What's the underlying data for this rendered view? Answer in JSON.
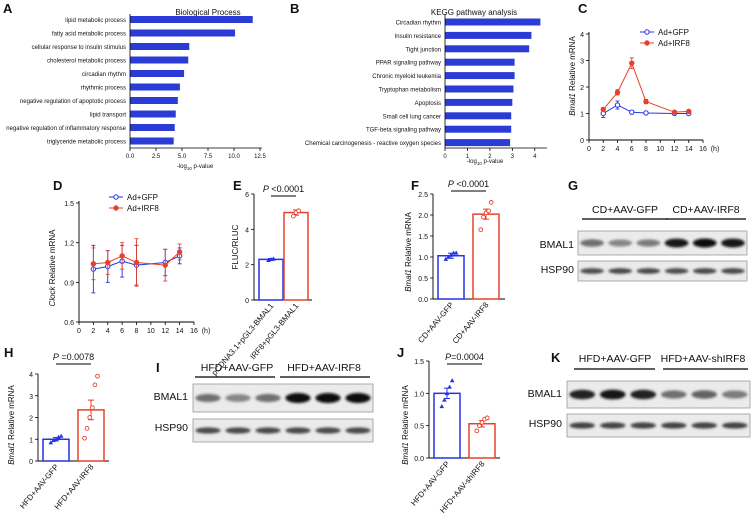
{
  "panels": {
    "A": {
      "label": "A",
      "title": "Biological Process",
      "xlabel_base": "-log",
      "xlabel_sub": "10",
      "xlabel_tail": " p-value",
      "ticks": [
        "0.0",
        "2.5",
        "5.0",
        "7.5",
        "10.0",
        "12.5"
      ],
      "xlim": [
        0,
        12.5
      ]
    },
    "B": {
      "label": "B",
      "title": "KEGG pathway analysis",
      "xlabel_base": "-log",
      "xlabel_sub": "10",
      "xlabel_tail": " p-value",
      "ticks": [
        "0",
        "1",
        "2",
        "3",
        "4"
      ],
      "xlim": [
        0,
        4.5
      ]
    },
    "C": {
      "label": "C",
      "ylabel_italic": "Bmal1",
      "ylabel_rest": " Relative mRNA",
      "yticks": [
        "0",
        "1",
        "2",
        "3",
        "4"
      ],
      "xticks": [
        "0",
        "2",
        "4",
        "6",
        "8",
        "10",
        "12",
        "14",
        "16"
      ],
      "xunit": "(h)",
      "legend": [
        "Ad+GFP",
        "Ad+IRF8"
      ]
    },
    "D": {
      "label": "D",
      "ylabel_italic": "Clock",
      "ylabel_rest": " Relative mRNA",
      "yticks": [
        "0.6",
        "0.9",
        "1.2",
        "1.5"
      ],
      "xticks": [
        "0",
        "2",
        "4",
        "6",
        "8",
        "10",
        "12",
        "14",
        "16"
      ],
      "xunit": "(h)",
      "legend": [
        "Ad+GFP",
        "Ad+IRF8"
      ]
    },
    "E": {
      "label": "E",
      "ylabel": "FLUC/RLUC",
      "yticks": [
        "0",
        "2",
        "4",
        "6"
      ],
      "pvalue": "P <0.0001",
      "categories": [
        "pCDNA3.1+pGL3-BMAL1",
        "IRF8+pGL3-BMAL1"
      ]
    },
    "F": {
      "label": "F",
      "ylabel_italic": "Bmal1",
      "ylabel_rest": " Relative mRNA",
      "yticks": [
        "0.0",
        "0.5",
        "1.0",
        "1.5",
        "2.0",
        "2.5"
      ],
      "pvalue": "P <0.0001",
      "categories": [
        "CD+AAV-GFP",
        "CD+AAV-IRF8"
      ]
    },
    "G": {
      "label": "G",
      "groups": [
        "CD+AAV-GFP",
        "CD+AAV-IRF8"
      ],
      "rows": [
        "BMAL1",
        "HSP90"
      ]
    },
    "H": {
      "label": "H",
      "ylabel_italic": "Bmal1",
      "ylabel_rest": " Relative mRNA",
      "yticks": [
        "0",
        "1",
        "2",
        "3",
        "4"
      ],
      "pvalue": "P =0.0078",
      "categories": [
        "HFD+AAV-GFP",
        "HFD+AAV-IRF8"
      ]
    },
    "I": {
      "label": "I",
      "groups": [
        "HFD+AAV-GFP",
        "HFD+AAV-IRF8"
      ],
      "rows": [
        "BMAL1",
        "HSP90"
      ]
    },
    "J": {
      "label": "J",
      "ylabel_italic": "Bmal1",
      "ylabel_rest": " Relative mRNA",
      "yticks": [
        "0.0",
        "0.5",
        "1.0",
        "1.5"
      ],
      "pvalue": "P=0.0004",
      "categories": [
        "HFD+AAV-GFP",
        "HFD+AAV-shIRF8"
      ]
    },
    "K": {
      "label": "K",
      "groups": [
        "HFD+AAV-GFP",
        "HFD+AAV-shIRF8"
      ],
      "rows": [
        "BMAL1",
        "HSP90"
      ]
    }
  },
  "colors": {
    "blue": "#2433e6",
    "red": "#e8402a",
    "bar_blue": "#2b3bd6"
  },
  "chart_data": [
    {
      "panel": "A",
      "type": "bar",
      "orientation": "horizontal",
      "title": "Biological Process",
      "categories": [
        "lipid metabolic process",
        "fatty acid metabolic process",
        "cellular response to insulin stimulus",
        "cholesterol metabolic process",
        "circadian rhythm",
        "rhythmic process",
        "negative regulation of apoptotic process",
        "lipid transport",
        "negative regulation of inflammatory response",
        "triglyceride metabolic process"
      ],
      "values": [
        11.8,
        10.1,
        5.7,
        5.6,
        5.2,
        4.8,
        4.6,
        4.4,
        4.3,
        4.2
      ],
      "xlabel": "-log10 p-value",
      "xlim": [
        0,
        12.5
      ]
    },
    {
      "panel": "B",
      "type": "bar",
      "orientation": "horizontal",
      "title": "KEGG pathway analysis",
      "categories": [
        "Circadian rhythm",
        "Insulin resistance",
        "Tight junction",
        "PPAR signaling pathway",
        "Chronic myeloid leukemia",
        "Tryptophan metabolism",
        "Apoptosis",
        "Small cell lung cancer",
        "TGF-beta signaling pathway",
        "Chemical carcinogenesis - reactive oxygen species"
      ],
      "values": [
        4.25,
        3.85,
        3.75,
        3.1,
        3.1,
        3.05,
        3.0,
        2.95,
        2.95,
        2.9
      ],
      "xlabel": "-log10 p-value",
      "xlim": [
        0,
        4.5
      ]
    },
    {
      "panel": "C",
      "type": "line",
      "x": [
        2,
        4,
        6,
        8,
        12,
        14
      ],
      "series": [
        {
          "name": "Ad+GFP",
          "values": [
            1.0,
            1.32,
            1.05,
            1.02,
            1.0,
            1.0
          ],
          "errors": [
            0.15,
            0.15,
            0.06,
            0.06,
            0.05,
            0.06
          ]
        },
        {
          "name": "Ad+IRF8",
          "values": [
            1.15,
            1.8,
            2.9,
            1.45,
            1.05,
            1.08
          ],
          "errors": [
            0.08,
            0.1,
            0.2,
            0.08,
            0.05,
            0.05
          ]
        }
      ],
      "ylabel": "Bmal1 Relative mRNA",
      "xlim": [
        0,
        16
      ],
      "ylim": [
        0,
        4
      ]
    },
    {
      "panel": "D",
      "type": "line",
      "x": [
        2,
        4,
        6,
        8,
        12,
        14
      ],
      "series": [
        {
          "name": "Ad+GFP",
          "values": [
            1.0,
            1.02,
            1.06,
            1.03,
            1.05,
            1.1
          ],
          "errors": [
            0.18,
            0.12,
            0.12,
            0.15,
            0.1,
            0.06
          ]
        },
        {
          "name": "Ad+IRF8",
          "values": [
            1.04,
            1.05,
            1.1,
            1.05,
            1.03,
            1.13
          ],
          "errors": [
            0.12,
            0.09,
            0.1,
            0.18,
            0.12,
            0.06
          ]
        }
      ],
      "ylabel": "Clock Relative mRNA",
      "xlim": [
        0,
        16
      ],
      "ylim": [
        0.6,
        1.5
      ]
    },
    {
      "panel": "E",
      "type": "bar",
      "categories": [
        "pCDNA3.1+pGL3-BMAL1",
        "IRF8+pGL3-BMAL1"
      ],
      "values": [
        2.3,
        4.95
      ],
      "errors": [
        0.05,
        0.15
      ],
      "points": [
        [
          2.25,
          2.3,
          2.33
        ],
        [
          4.75,
          4.95,
          5.05
        ]
      ],
      "ylabel": "FLUC/RLUC",
      "ylim": [
        0,
        6
      ],
      "pvalue": "P <0.0001"
    },
    {
      "panel": "F",
      "type": "bar",
      "categories": [
        "CD+AAV-GFP",
        "CD+AAV-IRF8"
      ],
      "values": [
        1.03,
        2.02
      ],
      "errors": [
        0.06,
        0.12
      ],
      "points": [
        [
          0.95,
          1.0,
          1.05,
          1.1,
          1.1
        ],
        [
          1.65,
          1.95,
          2.05,
          2.1,
          2.3
        ]
      ],
      "ylabel": "Bmal1 Relative mRNA",
      "ylim": [
        0,
        2.5
      ],
      "pvalue": "P <0.0001"
    },
    {
      "panel": "H",
      "type": "bar",
      "categories": [
        "HFD+AAV-GFP",
        "HFD+AAV-IRF8"
      ],
      "values": [
        1.0,
        2.35
      ],
      "errors": [
        0.08,
        0.45
      ],
      "points": [
        [
          0.85,
          0.95,
          1.0,
          1.1,
          1.15
        ],
        [
          1.05,
          1.5,
          2.0,
          2.45,
          3.5,
          3.9
        ]
      ],
      "ylabel": "Bmal1 Relative mRNA",
      "ylim": [
        0,
        4
      ],
      "pvalue": "P =0.0078"
    },
    {
      "panel": "J",
      "type": "bar",
      "categories": [
        "HFD+AAV-GFP",
        "HFD+AAV-shIRF8"
      ],
      "values": [
        1.0,
        0.53
      ],
      "errors": [
        0.08,
        0.05
      ],
      "points": [
        [
          0.8,
          0.9,
          1.0,
          1.1,
          1.2
        ],
        [
          0.42,
          0.5,
          0.55,
          0.6,
          0.62
        ]
      ],
      "ylabel": "Bmal1 Relative mRNA",
      "ylim": [
        0,
        1.5
      ],
      "pvalue": "P=0.0004"
    }
  ]
}
